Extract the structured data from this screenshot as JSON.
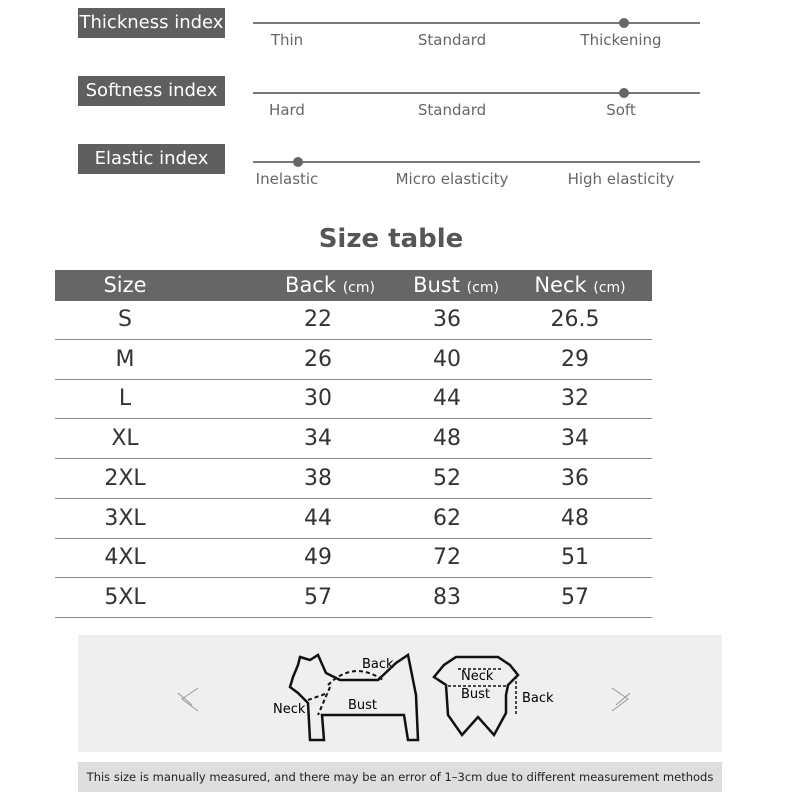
{
  "indices": [
    {
      "label": "Thickness index",
      "ticks": [
        "Thin",
        "Standard",
        "Thickening"
      ],
      "selected": "Thickening"
    },
    {
      "label": "Softness index",
      "ticks": [
        "Hard",
        "Standard",
        "Soft"
      ],
      "selected": "Soft"
    },
    {
      "label": "Elastic index",
      "ticks": [
        "Inelastic",
        "Micro elasticity",
        "High elasticity"
      ],
      "selected": "Inelastic"
    }
  ],
  "size_table": {
    "title": "Size table",
    "headers": [
      {
        "label": "Size",
        "unit": ""
      },
      {
        "label": "Back",
        "unit": "(cm)"
      },
      {
        "label": "Bust",
        "unit": "(cm)"
      },
      {
        "label": "Neck",
        "unit": "(cm)"
      }
    ],
    "rows": [
      [
        "S",
        "22",
        "36",
        "26.5"
      ],
      [
        "M",
        "26",
        "40",
        "29"
      ],
      [
        "L",
        "30",
        "44",
        "32"
      ],
      [
        "XL",
        "34",
        "48",
        "34"
      ],
      [
        "2XL",
        "38",
        "52",
        "36"
      ],
      [
        "3XL",
        "44",
        "62",
        "48"
      ],
      [
        "4XL",
        "49",
        "72",
        "51"
      ],
      [
        "5XL",
        "57",
        "83",
        "57"
      ]
    ]
  },
  "diagram": {
    "dog_labels": {
      "back": "Back",
      "neck": "Neck",
      "bust": "Bust"
    },
    "garment_labels": {
      "neck": "Neck",
      "bust": "Bust",
      "back": "Back"
    }
  },
  "footer": "This size is manually measured, and there may be an error of 1–3cm due to different measurement methods"
}
